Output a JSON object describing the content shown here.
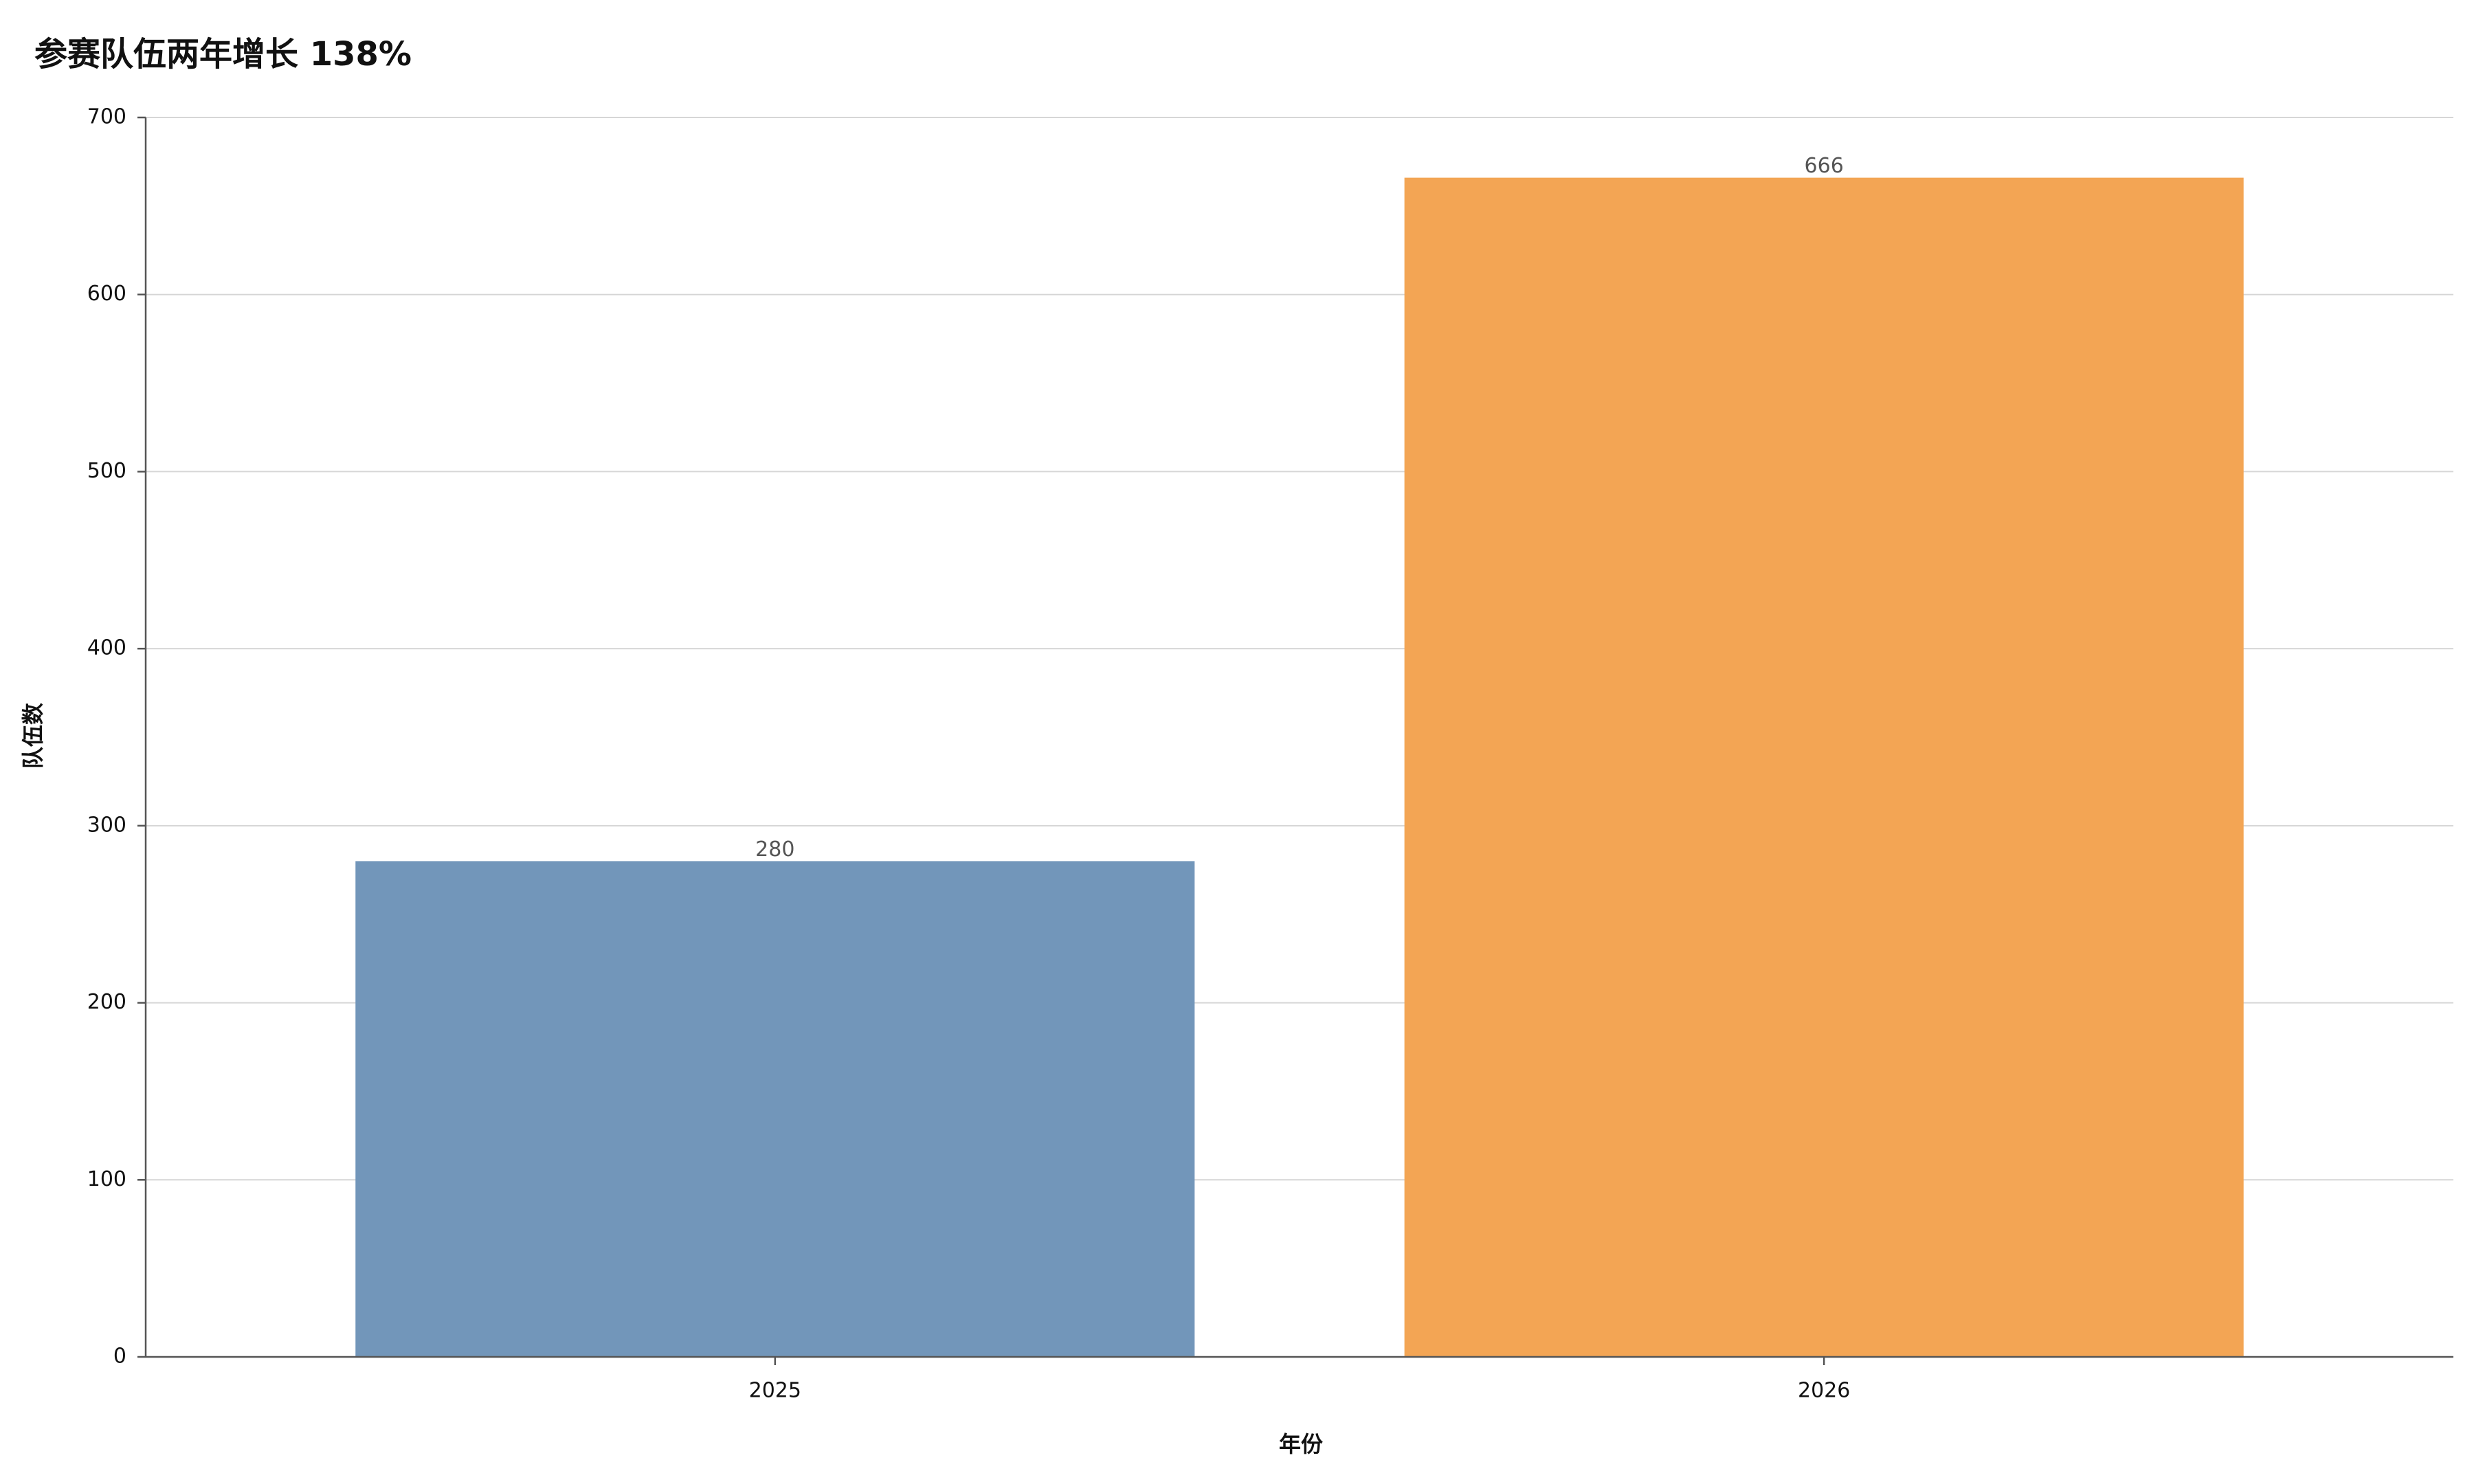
{
  "chart_data": {
    "type": "bar",
    "title": "参赛队伍两年增长 138%",
    "x_label": "年份",
    "y_label": "队伍数",
    "categories": [
      "2025",
      "2026"
    ],
    "values": [
      280,
      666
    ],
    "colors": [
      "#7296ba",
      "#f3a554"
    ],
    "ylim": [
      0,
      700
    ],
    "yticks": [
      0,
      100,
      200,
      300,
      400,
      500,
      600,
      700
    ],
    "grid": true
  }
}
